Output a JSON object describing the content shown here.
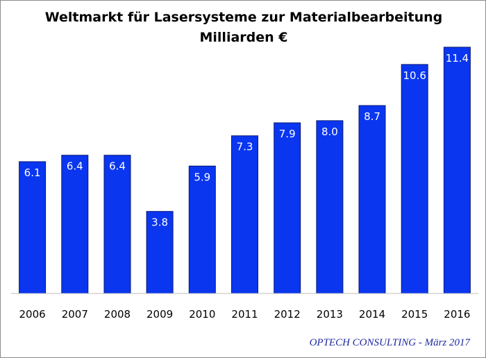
{
  "chart_data": {
    "type": "bar",
    "title": "Weltmarkt für Lasersysteme zur Materialbearbeitung",
    "subtitle": "Milliarden €",
    "xlabel": "",
    "ylabel": "",
    "categories": [
      "2006",
      "2007",
      "2008",
      "2009",
      "2010",
      "2011",
      "2012",
      "2013",
      "2014",
      "2015",
      "2016"
    ],
    "values": [
      6.1,
      6.4,
      6.4,
      3.8,
      5.9,
      7.3,
      7.9,
      8.0,
      8.7,
      10.6,
      11.4
    ],
    "value_labels": [
      "6.1",
      "6.4",
      "6.4",
      "3.8",
      "5.9",
      "7.3",
      "7.9",
      "8.0",
      "8.7",
      "10.6",
      "11.4"
    ],
    "ylim": [
      0,
      11.4
    ],
    "grid": false,
    "bar_color": "#0a36f0"
  },
  "source": "OPTECH CONSULTING - März 2017"
}
